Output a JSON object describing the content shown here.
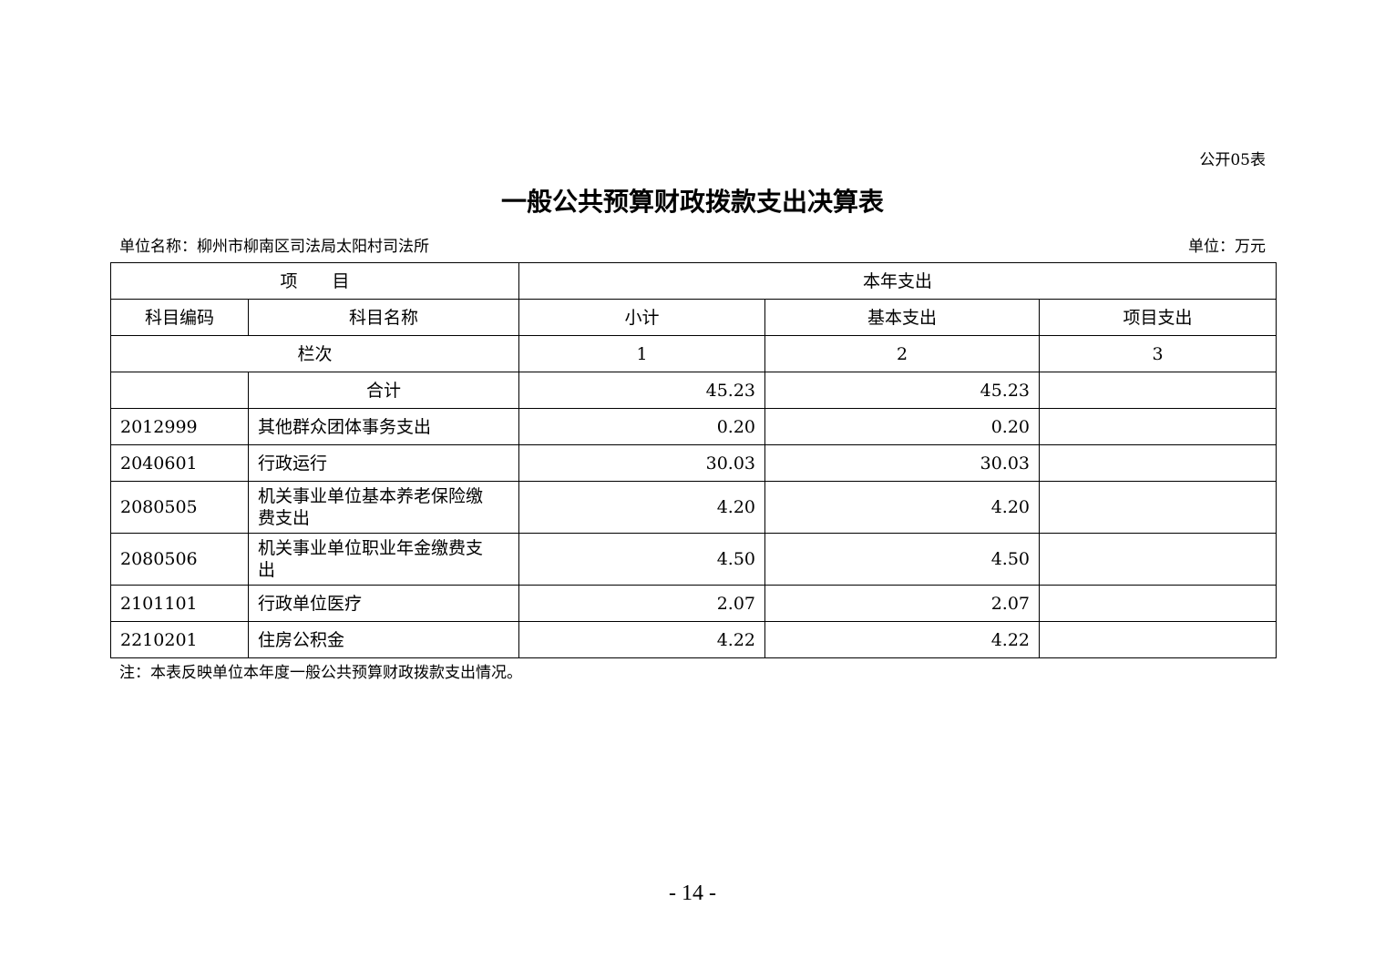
{
  "form_code": "公开05表",
  "title": "一般公共预算财政拨款支出决算表",
  "unit_name": "单位名称：柳州市柳南区司法局太阳村司法所",
  "unit": "单位：万元",
  "table": {
    "header_item": "项　　目",
    "header_year": "本年支出",
    "col_code": "科目编码",
    "col_name": "科目名称",
    "col_subtotal": "小计",
    "col_basic": "基本支出",
    "col_project": "项目支出",
    "row_index_label": "栏次",
    "row_index": [
      "1",
      "2",
      "3"
    ],
    "total": {
      "label": "合计",
      "subtotal": "45.23",
      "basic": "45.23",
      "project": ""
    },
    "rows": [
      {
        "code": "2012999",
        "name": "其他群众团体事务支出",
        "subtotal": "0.20",
        "basic": "0.20",
        "project": ""
      },
      {
        "code": "2040601",
        "name": "行政运行",
        "subtotal": "30.03",
        "basic": "30.03",
        "project": ""
      },
      {
        "code": "2080505",
        "name": "机关事业单位基本养老保险缴费支出",
        "subtotal": "4.20",
        "basic": "4.20",
        "project": ""
      },
      {
        "code": "2080506",
        "name": "机关事业单位职业年金缴费支出",
        "subtotal": "4.50",
        "basic": "4.50",
        "project": ""
      },
      {
        "code": "2101101",
        "name": "行政单位医疗",
        "subtotal": "2.07",
        "basic": "2.07",
        "project": ""
      },
      {
        "code": "2210201",
        "name": "住房公积金",
        "subtotal": "4.22",
        "basic": "4.22",
        "project": ""
      }
    ]
  },
  "note": "注：本表反映单位本年度一般公共预算财政拨款支出情况。",
  "page_number": "- 14 -"
}
